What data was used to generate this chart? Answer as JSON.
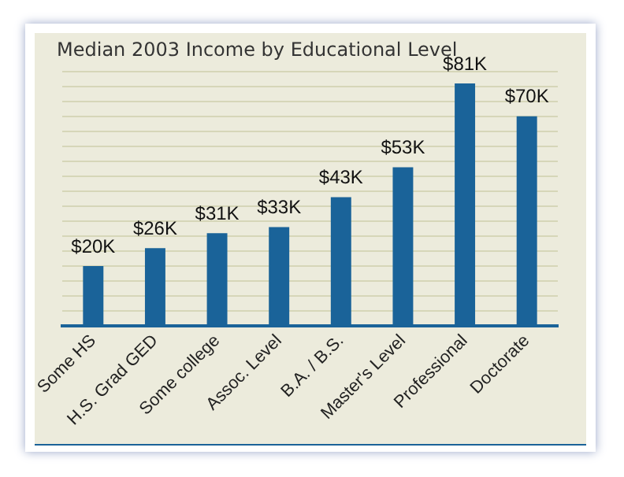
{
  "chart_data": {
    "type": "bar",
    "title": "Median 2003 Income by Educational Level",
    "categories": [
      "Some HS",
      "H.S. Grad GED",
      "Some college",
      "Assoc. Level",
      "B.A. / B.S.",
      "Master's Level",
      "Professional",
      "Doctorate"
    ],
    "values": [
      20,
      26,
      31,
      33,
      43,
      53,
      81,
      70
    ],
    "value_labels": [
      "$20K",
      "$26K",
      "$31K",
      "$33K",
      "$43K",
      "$53K",
      "$81K",
      "$70K"
    ],
    "color": "#1a6399",
    "ylim": [
      0,
      85
    ],
    "yticks": [
      {
        "value": 0,
        "label": null
      },
      {
        "value": 5,
        "label": null
      },
      {
        "value": 10,
        "label": null
      },
      {
        "value": 15,
        "label": null
      },
      {
        "value": 20,
        "label": null
      },
      {
        "value": 25,
        "label": null
      },
      {
        "value": 30,
        "label": null
      },
      {
        "value": 35,
        "label": null
      },
      {
        "value": 40,
        "label": null
      },
      {
        "value": 45,
        "label": null
      },
      {
        "value": 50,
        "label": null
      },
      {
        "value": 55,
        "label": null
      },
      {
        "value": 60,
        "label": null
      },
      {
        "value": 65,
        "label": null
      },
      {
        "value": 70,
        "label": null
      },
      {
        "value": 75,
        "label": null
      },
      {
        "value": 80,
        "label": null
      },
      {
        "value": 85,
        "label": null
      }
    ],
    "grid": "y",
    "tick_labels": "x"
  }
}
